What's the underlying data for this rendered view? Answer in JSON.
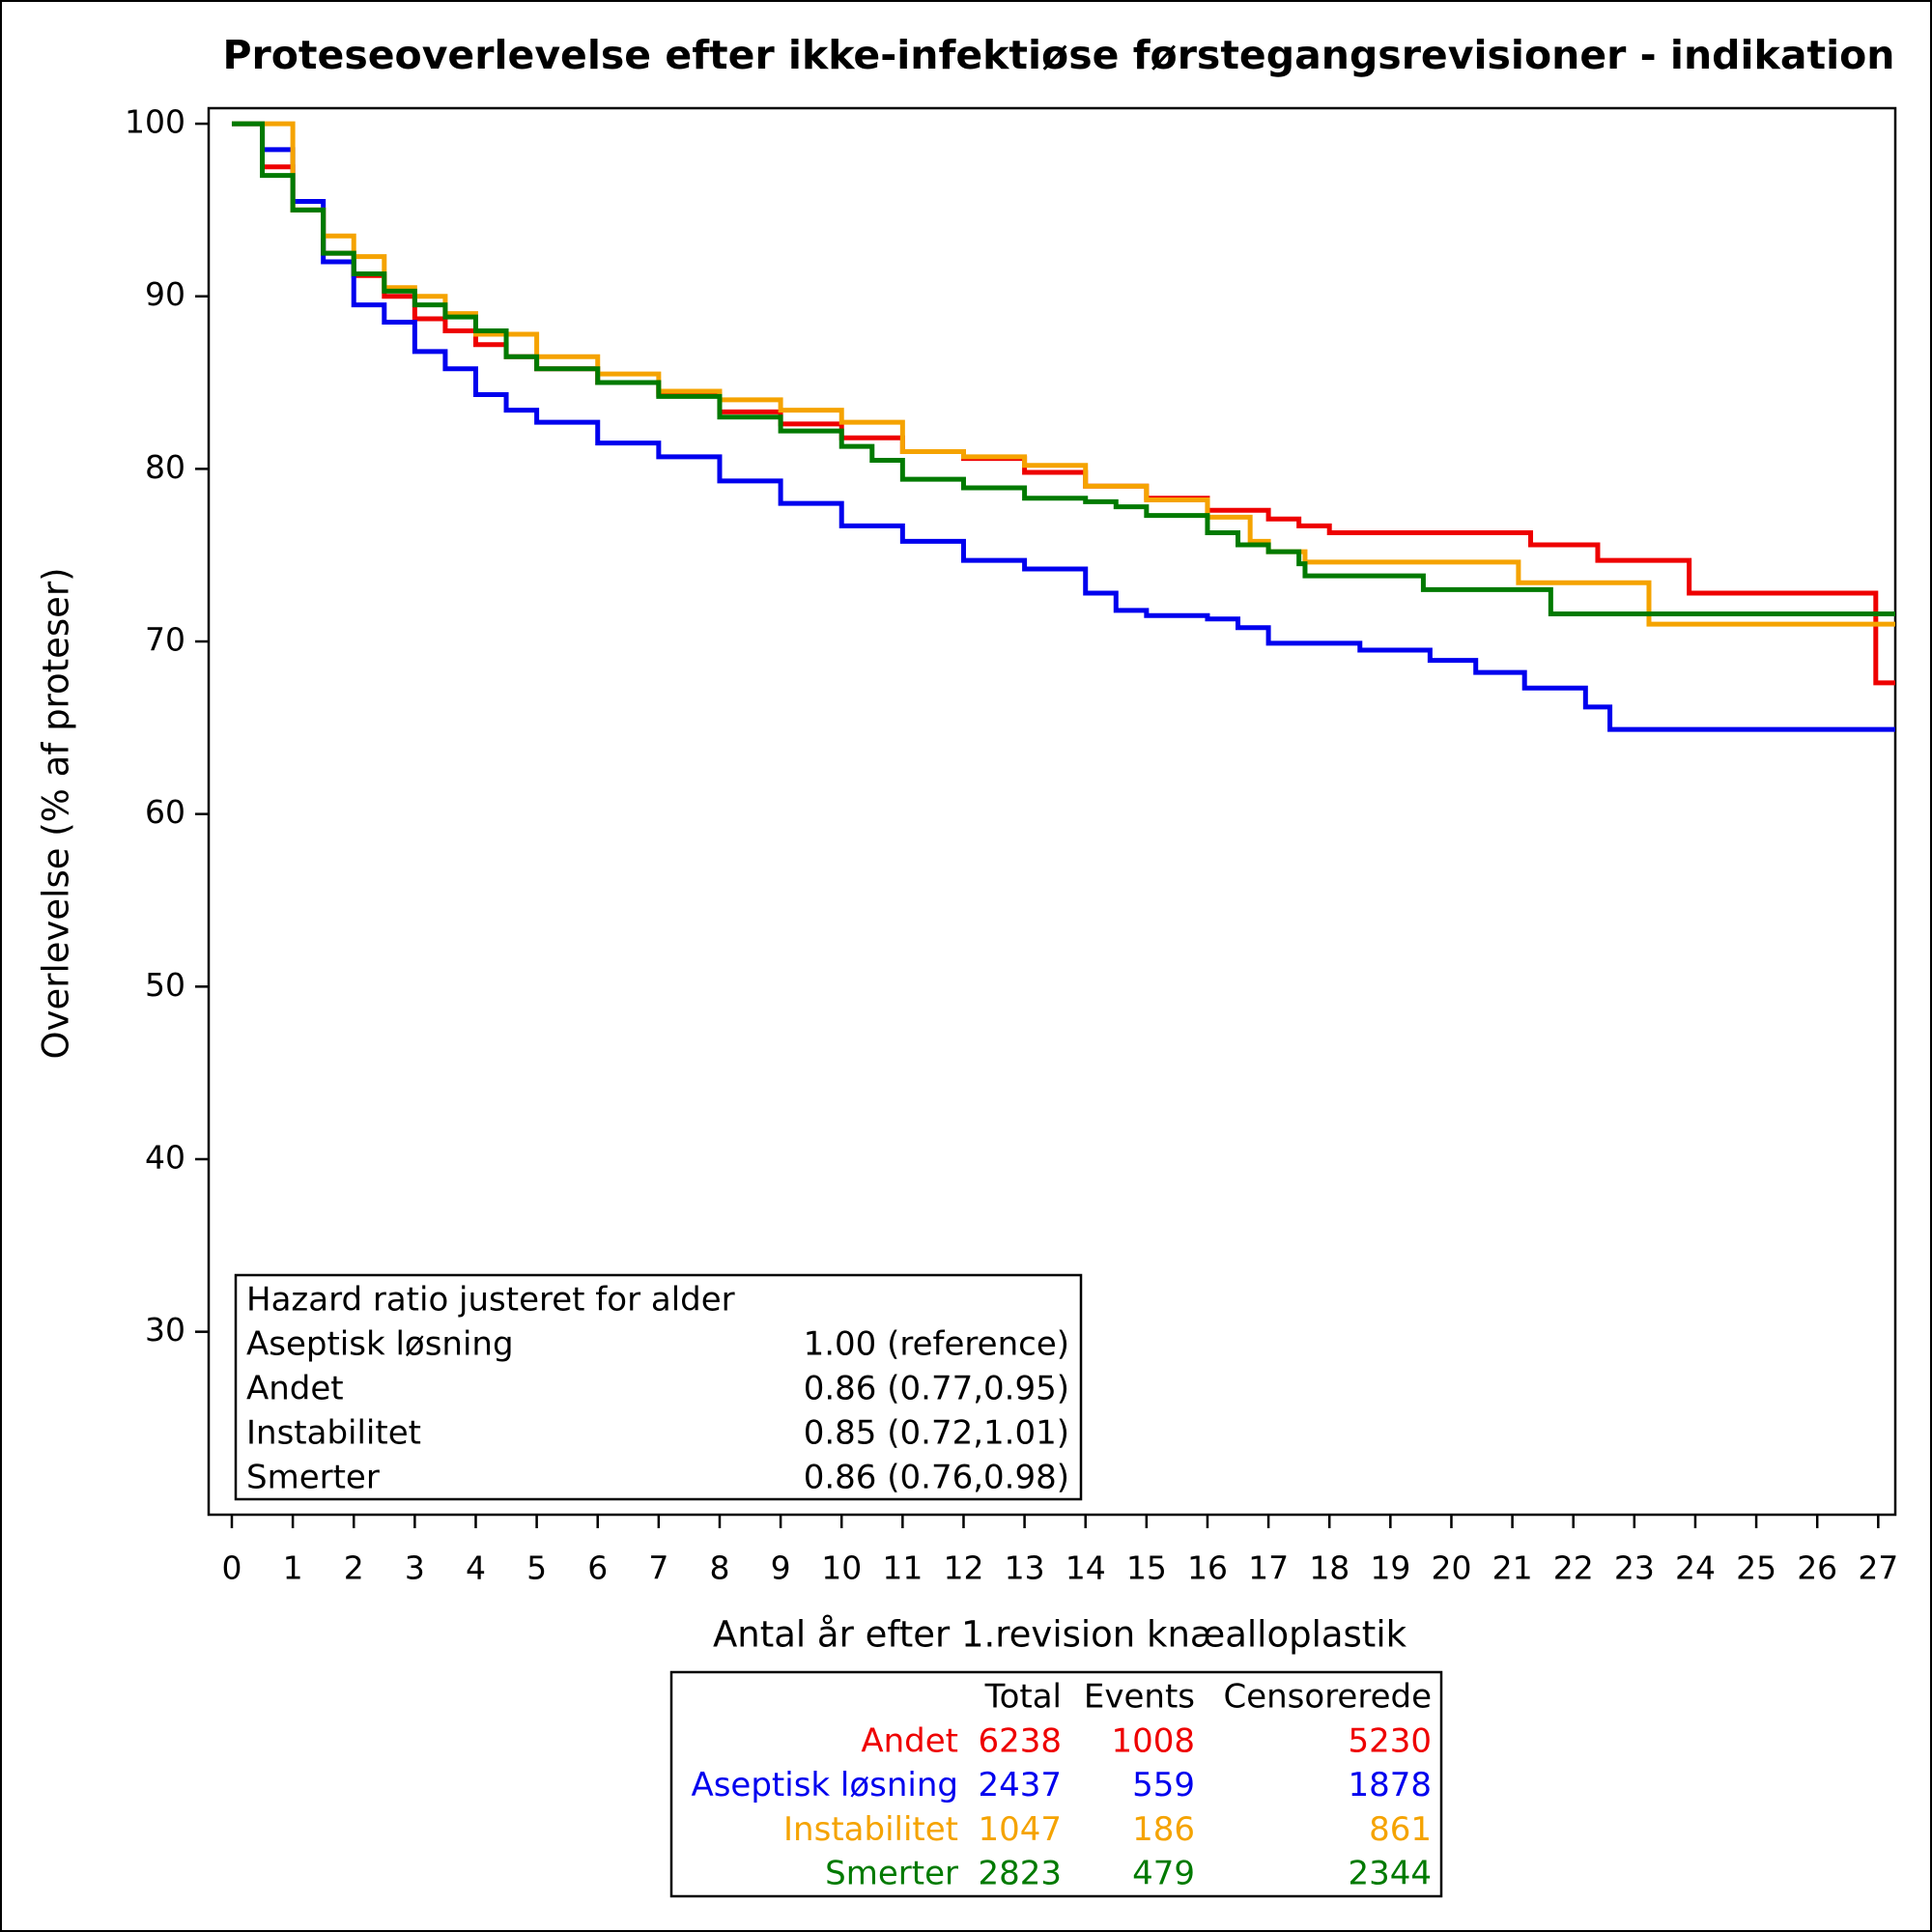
{
  "chart_data": {
    "type": "step",
    "title": "Proteseoverlevelse efter ikke-infektiøse førstegangsrevisioner - indikation",
    "x_label": "Antal år efter 1.revision knæalloplastik",
    "y_label": "Overlevelse (% af proteser)",
    "xlim": [
      -0.38,
      27.28
    ],
    "ylim": [
      19.4,
      100.9
    ],
    "xticks": [
      0,
      1,
      2,
      3,
      4,
      5,
      6,
      7,
      8,
      9,
      10,
      11,
      12,
      13,
      14,
      15,
      16,
      17,
      18,
      19,
      20,
      21,
      22,
      23,
      24,
      25,
      26,
      27
    ],
    "yticks": [
      30,
      40,
      50,
      60,
      70,
      80,
      90,
      100
    ],
    "series": [
      {
        "name": "Andet",
        "color": "#ee0000",
        "x": [
          0,
          0.5,
          1,
          1.5,
          2,
          2.5,
          3,
          3.5,
          4,
          4.5,
          5,
          6,
          7,
          8,
          9,
          10,
          11,
          12,
          13,
          14,
          15,
          16,
          17,
          17.5,
          18,
          21.3,
          22.4,
          23.9,
          26.96
        ],
        "values": [
          100,
          97.5,
          95,
          92.5,
          91.2,
          90,
          88.7,
          88,
          87.2,
          86.5,
          85.8,
          85,
          84.3,
          83.3,
          82.6,
          81.8,
          81,
          80.6,
          79.8,
          79,
          78.3,
          77.6,
          77.1,
          76.7,
          76.3,
          75.6,
          74.7,
          72.8,
          67.6
        ]
      },
      {
        "name": "Aseptisk løsning",
        "color": "#0000ee",
        "x": [
          0,
          0.5,
          1,
          1.5,
          2,
          2.5,
          3,
          3.5,
          4,
          4.5,
          5,
          6,
          7,
          8,
          9,
          10,
          11,
          12,
          13,
          14,
          14.5,
          15,
          16,
          16.5,
          17,
          18.5,
          19.65,
          20.4,
          21.2,
          22.2,
          22.6
        ],
        "values": [
          100,
          98.5,
          95.5,
          92,
          89.5,
          88.5,
          86.8,
          85.8,
          84.3,
          83.4,
          82.7,
          81.5,
          80.7,
          79.3,
          78,
          76.7,
          75.8,
          74.7,
          74.2,
          72.8,
          71.8,
          71.5,
          71.3,
          70.8,
          69.9,
          69.5,
          68.9,
          68.2,
          67.3,
          66.2,
          64.9
        ]
      },
      {
        "name": "Instabilitet",
        "color": "#f5a300",
        "x": [
          0,
          1,
          1.5,
          2,
          2.5,
          3,
          3.5,
          4,
          5,
          6,
          7,
          8,
          9,
          10,
          11,
          12,
          13,
          14,
          15,
          16,
          16.7,
          17,
          17.6,
          21.1,
          23.24
        ],
        "values": [
          100,
          95,
          93.5,
          92.3,
          90.5,
          90,
          89,
          87.8,
          86.5,
          85.5,
          84.5,
          84,
          83.4,
          82.7,
          81,
          80.7,
          80.2,
          79,
          78.2,
          77.2,
          75.8,
          75.2,
          74.6,
          73.4,
          71.0
        ]
      },
      {
        "name": "Smerter",
        "color": "#007a00",
        "x": [
          0,
          0.5,
          1,
          1.5,
          2,
          2.5,
          3,
          3.5,
          4,
          4.5,
          5,
          6,
          7,
          8,
          9,
          10,
          10.5,
          11,
          12,
          13,
          14,
          14.5,
          15,
          16,
          16.5,
          17,
          17.5,
          17.6,
          19.54,
          21.63
        ],
        "values": [
          100,
          97,
          95,
          92.5,
          91.3,
          90.3,
          89.5,
          88.8,
          88,
          86.5,
          85.8,
          85,
          84.2,
          83,
          82.2,
          81.3,
          80.5,
          79.4,
          78.9,
          78.3,
          78.1,
          77.8,
          77.3,
          76.3,
          75.6,
          75.2,
          74.5,
          73.8,
          73.0,
          71.6
        ]
      }
    ],
    "hazard_ratio": {
      "title": "Hazard ratio justeret for alder",
      "rows": [
        {
          "label": "Aseptisk løsning",
          "value": "1.00 (reference)"
        },
        {
          "label": "Andet",
          "value": "0.86 (0.77,0.95)"
        },
        {
          "label": "Instabilitet",
          "value": "0.85 (0.72,1.01)"
        },
        {
          "label": "Smerter",
          "value": "0.86 (0.76,0.98)"
        }
      ]
    },
    "summary_table": {
      "columns": [
        "Total",
        "Events",
        "Censorerede"
      ],
      "rows": [
        {
          "name": "Andet",
          "values": [
            6238,
            1008,
            5230
          ]
        },
        {
          "name": "Aseptisk løsning",
          "values": [
            2437,
            559,
            1878
          ]
        },
        {
          "name": "Instabilitet",
          "values": [
            1047,
            186,
            861
          ]
        },
        {
          "name": "Smerter",
          "values": [
            2823,
            479,
            2344
          ]
        }
      ]
    }
  }
}
